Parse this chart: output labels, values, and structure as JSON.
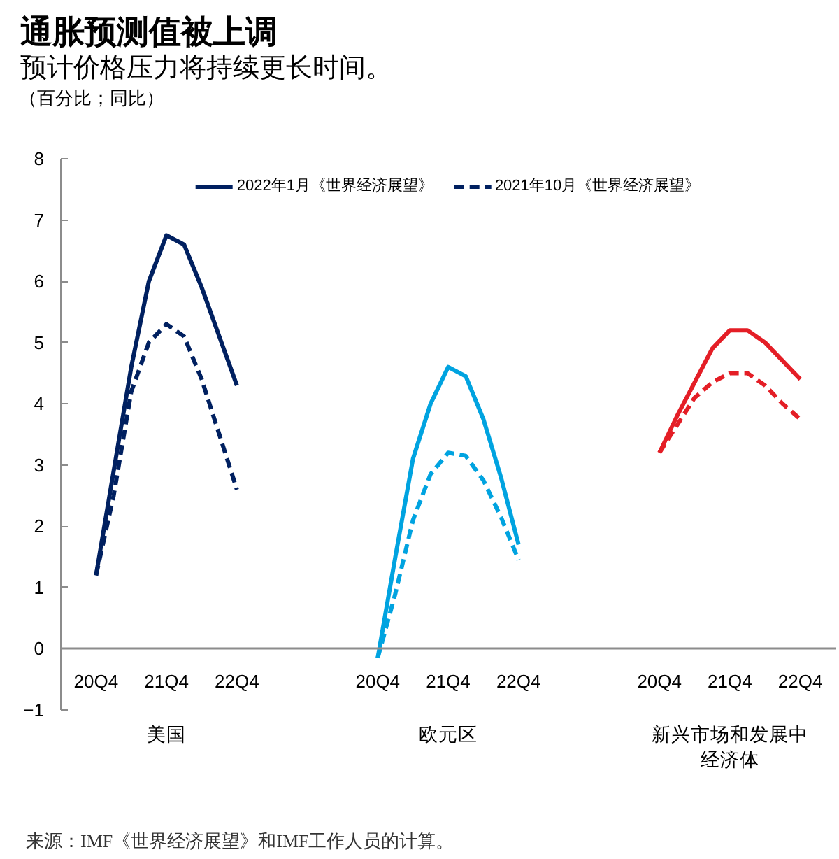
{
  "chart_data": {
    "type": "line",
    "title": "通胀预测值被上调",
    "subtitle": "预计价格压力将持续更长时间。",
    "ylabel": "（百分比；同比）",
    "categories": [
      "20Q4",
      null,
      null,
      null,
      "21Q4",
      null,
      null,
      null,
      "22Q4",
      null,
      null,
      null,
      null,
      null,
      null,
      null,
      "20Q4",
      null,
      null,
      null,
      "21Q4",
      null,
      null,
      null,
      "22Q4",
      null,
      null,
      null,
      null,
      null,
      null,
      null,
      "20Q4",
      null,
      null,
      null,
      "21Q4",
      null,
      null,
      null,
      "22Q4"
    ],
    "series": [
      {
        "name": "2022年1月《世界经济展望》",
        "color": "#002060",
        "line_style": "solid",
        "values": [
          1.2,
          2.9,
          4.6,
          6.0,
          6.75,
          6.6,
          5.9,
          5.1,
          4.3,
          null,
          null,
          null,
          null,
          null,
          null,
          null,
          null,
          null,
          null,
          null,
          null,
          null,
          null,
          null,
          null,
          null,
          null,
          null,
          null,
          null,
          null,
          null,
          null,
          null,
          null,
          null,
          null,
          null,
          null,
          null,
          null
        ]
      },
      {
        "name": "2021年10月《世界经济展望》",
        "color": "#002060",
        "line_style": "dashed",
        "values": [
          1.2,
          2.5,
          4.2,
          5.0,
          5.3,
          5.1,
          4.4,
          3.5,
          2.6,
          null,
          null,
          null,
          null,
          null,
          null,
          null,
          null,
          null,
          null,
          null,
          null,
          null,
          null,
          null,
          null,
          null,
          null,
          null,
          null,
          null,
          null,
          null,
          null,
          null,
          null,
          null,
          null,
          null,
          null,
          null,
          null
        ]
      },
      {
        "color": "#00a3e0",
        "line_style": "solid",
        "values": [
          null,
          null,
          null,
          null,
          null,
          null,
          null,
          null,
          null,
          null,
          null,
          null,
          null,
          null,
          null,
          null,
          -0.15,
          1.5,
          3.1,
          4.0,
          4.6,
          4.45,
          3.75,
          2.8,
          1.7,
          null,
          null,
          null,
          null,
          null,
          null,
          null,
          null,
          null,
          null,
          null,
          null,
          null,
          null,
          null,
          null
        ]
      },
      {
        "color": "#00a3e0",
        "line_style": "dashed",
        "values": [
          null,
          null,
          null,
          null,
          null,
          null,
          null,
          null,
          null,
          null,
          null,
          null,
          null,
          null,
          null,
          null,
          -0.15,
          0.9,
          2.1,
          2.85,
          3.2,
          3.15,
          2.75,
          2.15,
          1.45,
          null,
          null,
          null,
          null,
          null,
          null,
          null,
          null,
          null,
          null,
          null,
          null,
          null,
          null,
          null,
          null
        ]
      },
      {
        "color": "#e41e26",
        "line_style": "solid",
        "values": [
          null,
          null,
          null,
          null,
          null,
          null,
          null,
          null,
          null,
          null,
          null,
          null,
          null,
          null,
          null,
          null,
          null,
          null,
          null,
          null,
          null,
          null,
          null,
          null,
          null,
          null,
          null,
          null,
          null,
          null,
          null,
          null,
          3.2,
          3.8,
          4.35,
          4.9,
          5.2,
          5.2,
          5.0,
          4.7,
          4.4
        ]
      },
      {
        "color": "#e41e26",
        "line_style": "dashed",
        "values": [
          null,
          null,
          null,
          null,
          null,
          null,
          null,
          null,
          null,
          null,
          null,
          null,
          null,
          null,
          null,
          null,
          null,
          null,
          null,
          null,
          null,
          null,
          null,
          null,
          null,
          null,
          null,
          null,
          null,
          null,
          null,
          null,
          3.2,
          3.65,
          4.1,
          4.35,
          4.5,
          4.5,
          4.3,
          4.0,
          3.75
        ]
      }
    ],
    "ylim": [
      -1,
      8
    ],
    "yticks": [
      -1,
      0,
      1,
      2,
      3,
      4,
      5,
      6,
      7,
      8
    ],
    "grid": false,
    "legend": "top",
    "annotations": [
      "美国",
      "欧元区",
      "新兴市场和发展中经济体",
      "来源：IMF《世界经济展望》和IMF工作人员的计算。"
    ]
  }
}
